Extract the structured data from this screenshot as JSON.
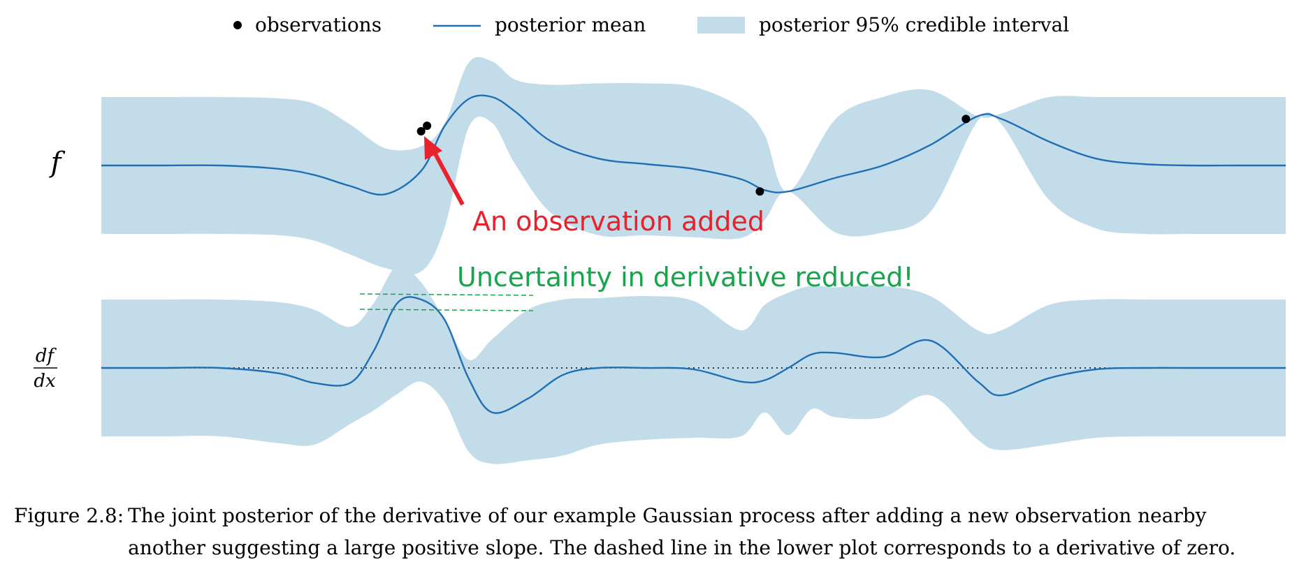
{
  "caption": {
    "label": "Figure 2.8:",
    "text": "The joint posterior of the derivative of our example Gaussian process after adding a new observation nearby another suggesting a large positive slope. The dashed line in the lower plot corresponds to a derivative of zero."
  },
  "annotations": {
    "observation_added": "An observation added",
    "uncertainty_reduced": "Uncertainty in derivative reduced!"
  },
  "colors": {
    "band": "#c2dcea",
    "mean": "#1f6fb4",
    "observation": "#000000",
    "annotation_red": "#e8212a",
    "annotation_green": "#16a54a"
  },
  "chart_data": [
    {
      "type": "line",
      "panel": "f",
      "ylabel": "f",
      "legend": [
        "observations",
        "posterior mean",
        "posterior 95% credible interval"
      ],
      "legend_position": "top-center",
      "xlim": [
        0,
        1
      ],
      "ylim": [
        -1.6,
        1.6
      ],
      "x": [
        0,
        0.05,
        0.1,
        0.15,
        0.18,
        0.21,
        0.24,
        0.27,
        0.29,
        0.31,
        0.33,
        0.35,
        0.38,
        0.42,
        0.46,
        0.5,
        0.54,
        0.56,
        0.58,
        0.62,
        0.66,
        0.7,
        0.74,
        0.76,
        0.8,
        0.84,
        0.88,
        0.92,
        0.96,
        1
      ],
      "mean": [
        0,
        0,
        0,
        -0.05,
        -0.14,
        -0.3,
        -0.42,
        -0.08,
        0.58,
        0.97,
        1.0,
        0.78,
        0.35,
        0.1,
        0.02,
        -0.05,
        -0.2,
        -0.36,
        -0.38,
        -0.18,
        0.0,
        0.3,
        0.72,
        0.68,
        0.35,
        0.1,
        0.02,
        0.0,
        0.0,
        0
      ],
      "lower": [
        -1,
        -1,
        -1,
        -1.02,
        -1.1,
        -1.3,
        -1.5,
        -1.55,
        -0.9,
        0.55,
        0.62,
        0.0,
        -0.7,
        -1.02,
        -1.02,
        -1.05,
        -1.06,
        -0.8,
        -0.38,
        -0.98,
        -0.98,
        -0.68,
        0.65,
        0.6,
        -0.5,
        -0.92,
        -1.0,
        -1.0,
        -1.0,
        -1
      ],
      "upper": [
        1,
        1,
        1,
        0.98,
        0.9,
        0.6,
        0.25,
        0.28,
        0.62,
        1.5,
        1.52,
        1.25,
        1.18,
        1.2,
        1.2,
        1.15,
        0.85,
        0.45,
        -0.38,
        0.68,
        1.0,
        1.1,
        0.72,
        0.76,
        1.0,
        1.0,
        1.0,
        1.0,
        1.0,
        1
      ],
      "observations": {
        "x": [
          0.27,
          0.275,
          0.556,
          0.73
        ],
        "y": [
          0.5,
          0.58,
          -0.38,
          0.68
        ]
      }
    },
    {
      "type": "line",
      "panel": "df/dx",
      "ylabel": "df/dx",
      "xlim": [
        0,
        1
      ],
      "ylim": [
        -1.6,
        1.6
      ],
      "zero_line": true,
      "x": [
        0,
        0.05,
        0.1,
        0.15,
        0.18,
        0.21,
        0.23,
        0.25,
        0.27,
        0.29,
        0.31,
        0.33,
        0.36,
        0.39,
        0.42,
        0.46,
        0.5,
        0.54,
        0.56,
        0.58,
        0.6,
        0.62,
        0.66,
        0.7,
        0.74,
        0.76,
        0.8,
        0.84,
        0.88,
        0.92,
        0.96,
        1
      ],
      "mean": [
        0,
        0,
        0,
        -0.08,
        -0.22,
        -0.22,
        0.25,
        0.95,
        1.0,
        0.7,
        -0.15,
        -0.65,
        -0.45,
        -0.1,
        0.0,
        0.0,
        -0.02,
        -0.2,
        -0.18,
        0.0,
        0.2,
        0.22,
        0.16,
        0.4,
        -0.2,
        -0.4,
        -0.15,
        -0.02,
        0.0,
        0.0,
        0.0,
        0
      ],
      "lower": [
        -1,
        -1,
        -1,
        -1.1,
        -1.12,
        -0.82,
        -0.62,
        -0.38,
        -0.2,
        -0.5,
        -1.22,
        -1.4,
        -1.35,
        -1.28,
        -1.12,
        -1.05,
        -1.02,
        -1.0,
        -0.65,
        -0.98,
        -0.6,
        -0.72,
        -0.72,
        -0.4,
        -1.05,
        -1.2,
        -1.12,
        -1.02,
        -1.0,
        -1.0,
        -1.0,
        -1
      ],
      "upper": [
        1,
        1,
        1,
        0.96,
        0.85,
        0.6,
        0.95,
        1.5,
        1.25,
        0.7,
        0.12,
        0.42,
        0.85,
        1.0,
        1.02,
        1.05,
        0.98,
        0.55,
        0.92,
        1.1,
        1.2,
        1.18,
        1.2,
        1.05,
        0.55,
        0.55,
        0.92,
        1.0,
        1.0,
        1.0,
        1.0,
        1
      ]
    }
  ]
}
